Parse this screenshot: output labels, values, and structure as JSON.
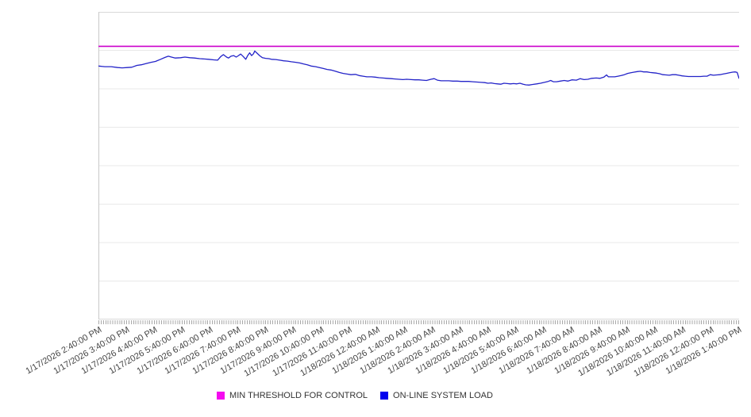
{
  "chart_data": {
    "type": "line",
    "title": "",
    "xlabel": "",
    "ylabel": "",
    "y_axis": {
      "labels_visible": false,
      "units": "percent of plot height (y axis is unlabeled in source)",
      "range": [
        0,
        100
      ],
      "gridlines": 9,
      "grid_on": true
    },
    "x_axis": {
      "tick_labels": [
        "1/17/2026 2:40:00 PM",
        "1/17/2026 3:40:00 PM",
        "1/17/2026 4:40:00 PM",
        "1/17/2026 5:40:00 PM",
        "1/17/2026 6:40:00 PM",
        "1/17/2026 7:40:00 PM",
        "1/17/2026 8:40:00 PM",
        "1/17/2026 9:40:00 PM",
        "1/17/2026 10:40:00 PM",
        "1/17/2026 11:40:00 PM",
        "1/18/2026 12:40:00 AM",
        "1/18/2026 1:40:00 AM",
        "1/18/2026 2:40:00 AM",
        "1/18/2026 3:40:00 AM",
        "1/18/2026 4:40:00 AM",
        "1/18/2026 5:40:00 AM",
        "1/18/2026 6:40:00 AM",
        "1/18/2026 7:40:00 AM",
        "1/18/2026 8:40:00 AM",
        "1/18/2026 9:40:00 AM",
        "1/18/2026 10:40:00 AM",
        "1/18/2026 11:40:00 AM",
        "1/18/2026 12:40:00 PM",
        "1/18/2026 1:40:00 PM"
      ],
      "minor_ticks": "dense (approx every 5 minutes)"
    },
    "legend_position": "bottom",
    "legend": [
      {
        "label": "MIN THRESHOLD FOR CONTROL",
        "color": "#F50AF0"
      },
      {
        "label": "ON-LINE SYSTEM LOAD",
        "color": "#0000EE"
      }
    ],
    "threshold": {
      "name": "MIN THRESHOLD FOR CONTROL",
      "value_pct": 88.8,
      "line_color": "#CC00CC"
    },
    "series": {
      "name": "ON-LINE SYSTEM LOAD",
      "line_color": "#2323C8",
      "points": [
        [
          0.0,
          82.4
        ],
        [
          0.01,
          82.2
        ],
        [
          0.02,
          82.2
        ],
        [
          0.03,
          81.9
        ],
        [
          0.037,
          81.8
        ],
        [
          0.045,
          81.9
        ],
        [
          0.052,
          82.0
        ],
        [
          0.06,
          82.6
        ],
        [
          0.067,
          82.8
        ],
        [
          0.074,
          83.2
        ],
        [
          0.082,
          83.6
        ],
        [
          0.089,
          83.9
        ],
        [
          0.097,
          84.6
        ],
        [
          0.104,
          85.2
        ],
        [
          0.109,
          85.6
        ],
        [
          0.114,
          85.3
        ],
        [
          0.12,
          85.0
        ],
        [
          0.128,
          85.1
        ],
        [
          0.135,
          85.3
        ],
        [
          0.143,
          85.1
        ],
        [
          0.15,
          85.0
        ],
        [
          0.158,
          84.8
        ],
        [
          0.165,
          84.7
        ],
        [
          0.172,
          84.6
        ],
        [
          0.18,
          84.4
        ],
        [
          0.186,
          84.3
        ],
        [
          0.191,
          85.5
        ],
        [
          0.195,
          86.1
        ],
        [
          0.2,
          85.3
        ],
        [
          0.203,
          85.0
        ],
        [
          0.207,
          85.6
        ],
        [
          0.211,
          85.8
        ],
        [
          0.215,
          85.3
        ],
        [
          0.218,
          85.7
        ],
        [
          0.222,
          86.3
        ],
        [
          0.226,
          85.5
        ],
        [
          0.23,
          84.6
        ],
        [
          0.233,
          85.8
        ],
        [
          0.236,
          86.7
        ],
        [
          0.239,
          85.8
        ],
        [
          0.242,
          86.4
        ],
        [
          0.244,
          87.3
        ],
        [
          0.248,
          86.5
        ],
        [
          0.252,
          85.7
        ],
        [
          0.256,
          85.1
        ],
        [
          0.261,
          84.9
        ],
        [
          0.266,
          84.8
        ],
        [
          0.27,
          84.6
        ],
        [
          0.277,
          84.5
        ],
        [
          0.283,
          84.3
        ],
        [
          0.289,
          84.1
        ],
        [
          0.295,
          84.0
        ],
        [
          0.301,
          83.8
        ],
        [
          0.308,
          83.6
        ],
        [
          0.314,
          83.4
        ],
        [
          0.32,
          83.1
        ],
        [
          0.326,
          82.8
        ],
        [
          0.332,
          82.4
        ],
        [
          0.339,
          82.2
        ],
        [
          0.345,
          81.9
        ],
        [
          0.351,
          81.6
        ],
        [
          0.357,
          81.3
        ],
        [
          0.363,
          81.1
        ],
        [
          0.37,
          80.7
        ],
        [
          0.376,
          80.3
        ],
        [
          0.382,
          80.0
        ],
        [
          0.388,
          79.8
        ],
        [
          0.394,
          79.6
        ],
        [
          0.401,
          79.7
        ],
        [
          0.407,
          79.3
        ],
        [
          0.413,
          79.1
        ],
        [
          0.419,
          78.9
        ],
        [
          0.426,
          78.9
        ],
        [
          0.432,
          78.8
        ],
        [
          0.438,
          78.6
        ],
        [
          0.444,
          78.5
        ],
        [
          0.45,
          78.4
        ],
        [
          0.457,
          78.3
        ],
        [
          0.463,
          78.2
        ],
        [
          0.469,
          78.1
        ],
        [
          0.475,
          78.0
        ],
        [
          0.481,
          78.1
        ],
        [
          0.488,
          78.0
        ],
        [
          0.494,
          77.9
        ],
        [
          0.5,
          77.9
        ],
        [
          0.506,
          77.8
        ],
        [
          0.512,
          77.7
        ],
        [
          0.519,
          78.1
        ],
        [
          0.524,
          78.3
        ],
        [
          0.529,
          77.8
        ],
        [
          0.535,
          77.6
        ],
        [
          0.541,
          77.6
        ],
        [
          0.547,
          77.6
        ],
        [
          0.553,
          77.5
        ],
        [
          0.56,
          77.5
        ],
        [
          0.566,
          77.4
        ],
        [
          0.572,
          77.4
        ],
        [
          0.578,
          77.4
        ],
        [
          0.584,
          77.3
        ],
        [
          0.591,
          77.2
        ],
        [
          0.597,
          77.1
        ],
        [
          0.603,
          77.0
        ],
        [
          0.608,
          76.8
        ],
        [
          0.613,
          76.9
        ],
        [
          0.618,
          76.7
        ],
        [
          0.623,
          76.6
        ],
        [
          0.628,
          76.5
        ],
        [
          0.633,
          76.8
        ],
        [
          0.638,
          76.7
        ],
        [
          0.643,
          76.6
        ],
        [
          0.648,
          76.7
        ],
        [
          0.653,
          76.6
        ],
        [
          0.658,
          76.8
        ],
        [
          0.663,
          76.5
        ],
        [
          0.667,
          76.3
        ],
        [
          0.672,
          76.2
        ],
        [
          0.677,
          76.4
        ],
        [
          0.684,
          76.6
        ],
        [
          0.69,
          76.8
        ],
        [
          0.696,
          77.1
        ],
        [
          0.702,
          77.4
        ],
        [
          0.706,
          77.7
        ],
        [
          0.71,
          77.3
        ],
        [
          0.715,
          77.3
        ],
        [
          0.721,
          77.5
        ],
        [
          0.727,
          77.7
        ],
        [
          0.733,
          77.5
        ],
        [
          0.739,
          77.9
        ],
        [
          0.746,
          77.8
        ],
        [
          0.752,
          78.3
        ],
        [
          0.758,
          78.0
        ],
        [
          0.764,
          78.1
        ],
        [
          0.77,
          78.4
        ],
        [
          0.777,
          78.5
        ],
        [
          0.783,
          78.4
        ],
        [
          0.789,
          78.8
        ],
        [
          0.793,
          79.5
        ],
        [
          0.796,
          78.9
        ],
        [
          0.801,
          78.9
        ],
        [
          0.806,
          78.9
        ],
        [
          0.811,
          79.1
        ],
        [
          0.816,
          79.3
        ],
        [
          0.821,
          79.6
        ],
        [
          0.826,
          80.0
        ],
        [
          0.831,
          80.2
        ],
        [
          0.836,
          80.4
        ],
        [
          0.841,
          80.6
        ],
        [
          0.846,
          80.7
        ],
        [
          0.851,
          80.5
        ],
        [
          0.856,
          80.5
        ],
        [
          0.861,
          80.3
        ],
        [
          0.866,
          80.2
        ],
        [
          0.871,
          80.1
        ],
        [
          0.876,
          79.9
        ],
        [
          0.881,
          79.6
        ],
        [
          0.886,
          79.5
        ],
        [
          0.891,
          79.4
        ],
        [
          0.896,
          79.6
        ],
        [
          0.901,
          79.6
        ],
        [
          0.906,
          79.4
        ],
        [
          0.911,
          79.2
        ],
        [
          0.916,
          79.1
        ],
        [
          0.921,
          79.0
        ],
        [
          0.926,
          79.0
        ],
        [
          0.93,
          79.0
        ],
        [
          0.935,
          79.0
        ],
        [
          0.94,
          79.0
        ],
        [
          0.945,
          79.1
        ],
        [
          0.95,
          79.1
        ],
        [
          0.955,
          79.6
        ],
        [
          0.96,
          79.4
        ],
        [
          0.965,
          79.5
        ],
        [
          0.97,
          79.6
        ],
        [
          0.975,
          79.8
        ],
        [
          0.98,
          80.0
        ],
        [
          0.985,
          80.2
        ],
        [
          0.99,
          80.4
        ],
        [
          0.994,
          80.5
        ],
        [
          0.997,
          80.3
        ],
        [
          1.0,
          78.3
        ]
      ]
    }
  }
}
